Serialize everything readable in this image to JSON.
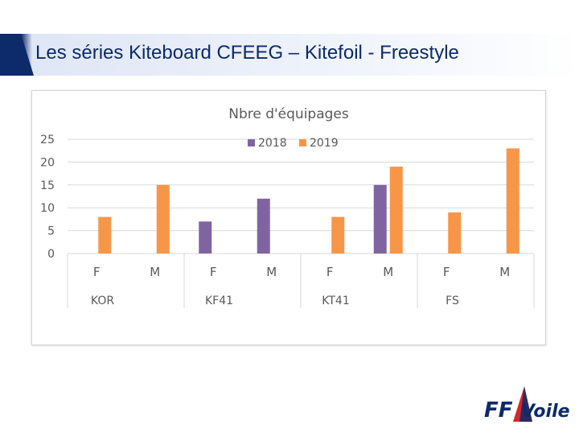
{
  "slide": {
    "title": "Les séries Kiteboard CFEEG – Kitefoil - Freestyle"
  },
  "chart_data": {
    "type": "bar",
    "title": "Nbre d'équipages",
    "ylim": [
      0,
      25
    ],
    "yticks": [
      0,
      5,
      10,
      15,
      20,
      25
    ],
    "groups": [
      "KOR",
      "KF41",
      "KT41",
      "FS"
    ],
    "categories": [
      "F",
      "M",
      "F",
      "M",
      "F",
      "M",
      "F",
      "M"
    ],
    "series": [
      {
        "name": "2018",
        "color": "#8064a2",
        "values": [
          null,
          null,
          7,
          12,
          null,
          15,
          null,
          null
        ]
      },
      {
        "name": "2019",
        "color": "#f79646",
        "values": [
          8,
          15,
          null,
          null,
          8,
          19,
          9,
          23
        ]
      }
    ],
    "legend_position": "top"
  },
  "logo": {
    "text_ff": "FF",
    "text_voile": "Voile"
  }
}
